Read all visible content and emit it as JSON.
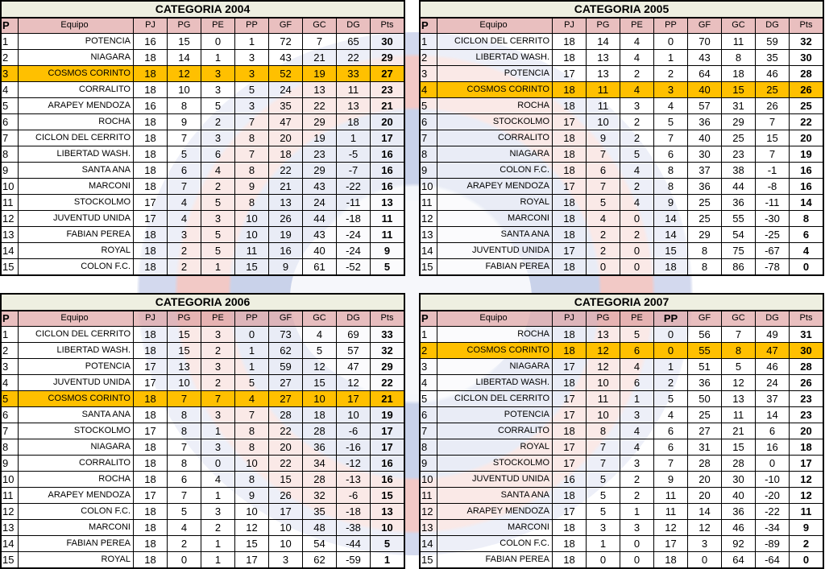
{
  "highlight_team": "COSMOS CORINTO",
  "colors": {
    "highlight": "#FFC000",
    "header": "#E2AAAA",
    "title_bg": "#EEEFE1"
  },
  "columns": [
    "P",
    "Equipo",
    "PJ",
    "PG",
    "PE",
    "PP",
    "GF",
    "GC",
    "DG",
    "Pts"
  ],
  "tables": [
    {
      "title": "CATEGORIA 2004",
      "rows": [
        [
          "1",
          "POTENCIA",
          "16",
          "15",
          "0",
          "1",
          "72",
          "7",
          "65",
          "30"
        ],
        [
          "2",
          "NIAGARA",
          "18",
          "14",
          "1",
          "3",
          "43",
          "21",
          "22",
          "29"
        ],
        [
          "3",
          "COSMOS CORINTO",
          "18",
          "12",
          "3",
          "3",
          "52",
          "19",
          "33",
          "27"
        ],
        [
          "4",
          "CORRALITO",
          "18",
          "10",
          "3",
          "5",
          "24",
          "13",
          "11",
          "23"
        ],
        [
          "5",
          "ARAPEY MENDOZA",
          "16",
          "8",
          "5",
          "3",
          "35",
          "22",
          "13",
          "21"
        ],
        [
          "6",
          "ROCHA",
          "18",
          "9",
          "2",
          "7",
          "47",
          "29",
          "18",
          "20"
        ],
        [
          "7",
          "CICLON DEL CERRITO",
          "18",
          "7",
          "3",
          "8",
          "20",
          "19",
          "1",
          "17"
        ],
        [
          "8",
          "LIBERTAD WASH.",
          "18",
          "5",
          "6",
          "7",
          "18",
          "23",
          "-5",
          "16"
        ],
        [
          "9",
          "SANTA ANA",
          "18",
          "6",
          "4",
          "8",
          "22",
          "29",
          "-7",
          "16"
        ],
        [
          "10",
          "MARCONI",
          "18",
          "7",
          "2",
          "9",
          "21",
          "43",
          "-22",
          "16"
        ],
        [
          "11",
          "STOCKOLMO",
          "17",
          "4",
          "5",
          "8",
          "13",
          "24",
          "-11",
          "13"
        ],
        [
          "12",
          "JUVENTUD UNIDA",
          "17",
          "4",
          "3",
          "10",
          "26",
          "44",
          "-18",
          "11"
        ],
        [
          "13",
          "FABIAN PEREA",
          "18",
          "3",
          "5",
          "10",
          "19",
          "43",
          "-24",
          "11"
        ],
        [
          "14",
          "ROYAL",
          "18",
          "2",
          "5",
          "11",
          "16",
          "40",
          "-24",
          "9"
        ],
        [
          "15",
          "COLON F.C.",
          "18",
          "2",
          "1",
          "15",
          "9",
          "61",
          "-52",
          "5"
        ]
      ]
    },
    {
      "title": "CATEGORIA 2005",
      "rows": [
        [
          "1",
          "CICLON DEL CERRITO",
          "18",
          "14",
          "4",
          "0",
          "70",
          "11",
          "59",
          "32"
        ],
        [
          "2",
          "LIBERTAD WASH.",
          "18",
          "13",
          "4",
          "1",
          "43",
          "8",
          "35",
          "30"
        ],
        [
          "3",
          "POTENCIA",
          "17",
          "13",
          "2",
          "2",
          "64",
          "18",
          "46",
          "28"
        ],
        [
          "4",
          "COSMOS CORINTO",
          "18",
          "11",
          "4",
          "3",
          "40",
          "15",
          "25",
          "26"
        ],
        [
          "5",
          "ROCHA",
          "18",
          "11",
          "3",
          "4",
          "57",
          "31",
          "26",
          "25"
        ],
        [
          "6",
          "STOCKOLMO",
          "17",
          "10",
          "2",
          "5",
          "36",
          "29",
          "7",
          "22"
        ],
        [
          "7",
          "CORRALITO",
          "18",
          "9",
          "2",
          "7",
          "40",
          "25",
          "15",
          "20"
        ],
        [
          "8",
          "NIAGARA",
          "18",
          "7",
          "5",
          "6",
          "30",
          "23",
          "7",
          "19"
        ],
        [
          "9",
          "COLON F.C.",
          "18",
          "6",
          "4",
          "8",
          "37",
          "38",
          "-1",
          "16"
        ],
        [
          "10",
          "ARAPEY MENDOZA",
          "17",
          "7",
          "2",
          "8",
          "36",
          "44",
          "-8",
          "16"
        ],
        [
          "11",
          "ROYAL",
          "18",
          "5",
          "4",
          "9",
          "25",
          "36",
          "-11",
          "14"
        ],
        [
          "12",
          "MARCONI",
          "18",
          "4",
          "0",
          "14",
          "25",
          "55",
          "-30",
          "8"
        ],
        [
          "13",
          "SANTA ANA",
          "18",
          "2",
          "2",
          "14",
          "29",
          "54",
          "-25",
          "6"
        ],
        [
          "14",
          "JUVENTUD UNIDA",
          "17",
          "2",
          "0",
          "15",
          "8",
          "75",
          "-67",
          "4"
        ],
        [
          "15",
          "FABIAN PEREA",
          "18",
          "0",
          "0",
          "18",
          "8",
          "86",
          "-78",
          "0"
        ]
      ]
    },
    {
      "title": "CATEGORIA 2006",
      "rows": [
        [
          "1",
          "CICLON DEL CERRITO",
          "18",
          "15",
          "3",
          "0",
          "73",
          "4",
          "69",
          "33"
        ],
        [
          "2",
          "LIBERTAD WASH.",
          "18",
          "15",
          "2",
          "1",
          "62",
          "5",
          "57",
          "32"
        ],
        [
          "3",
          "POTENCIA",
          "17",
          "13",
          "3",
          "1",
          "59",
          "12",
          "47",
          "29"
        ],
        [
          "4",
          "JUVENTUD UNIDA",
          "17",
          "10",
          "2",
          "5",
          "27",
          "15",
          "12",
          "22"
        ],
        [
          "5",
          "COSMOS CORINTO",
          "18",
          "7",
          "7",
          "4",
          "27",
          "10",
          "17",
          "21"
        ],
        [
          "6",
          "SANTA ANA",
          "18",
          "8",
          "3",
          "7",
          "28",
          "18",
          "10",
          "19"
        ],
        [
          "7",
          "STOCKOLMO",
          "17",
          "8",
          "1",
          "8",
          "22",
          "28",
          "-6",
          "17"
        ],
        [
          "8",
          "NIAGARA",
          "18",
          "7",
          "3",
          "8",
          "20",
          "36",
          "-16",
          "17"
        ],
        [
          "9",
          "CORRALITO",
          "18",
          "8",
          "0",
          "10",
          "22",
          "34",
          "-12",
          "16"
        ],
        [
          "10",
          "ROCHA",
          "18",
          "6",
          "4",
          "8",
          "15",
          "28",
          "-13",
          "16"
        ],
        [
          "11",
          "ARAPEY MENDOZA",
          "17",
          "7",
          "1",
          "9",
          "26",
          "32",
          "-6",
          "15"
        ],
        [
          "12",
          "COLON F.C.",
          "18",
          "5",
          "3",
          "10",
          "17",
          "35",
          "-18",
          "13"
        ],
        [
          "13",
          "MARCONI",
          "18",
          "4",
          "2",
          "12",
          "10",
          "48",
          "-38",
          "10"
        ],
        [
          "14",
          "FABIAN PEREA",
          "18",
          "2",
          "1",
          "15",
          "10",
          "54",
          "-44",
          "5"
        ],
        [
          "15",
          "ROYAL",
          "18",
          "0",
          "1",
          "17",
          "3",
          "62",
          "-59",
          "1"
        ]
      ]
    },
    {
      "title": "CATEGORIA 2007",
      "rows": [
        [
          "1",
          "ROCHA",
          "18",
          "13",
          "5",
          "0",
          "56",
          "7",
          "49",
          "31"
        ],
        [
          "2",
          "COSMOS CORINTO",
          "18",
          "12",
          "6",
          "0",
          "55",
          "8",
          "47",
          "30"
        ],
        [
          "3",
          "NIAGARA",
          "17",
          "12",
          "4",
          "1",
          "51",
          "5",
          "46",
          "28"
        ],
        [
          "4",
          "LIBERTAD WASH.",
          "18",
          "10",
          "6",
          "2",
          "36",
          "12",
          "24",
          "26"
        ],
        [
          "5",
          "CICLON DEL CERRITO",
          "17",
          "11",
          "1",
          "5",
          "50",
          "13",
          "37",
          "23"
        ],
        [
          "6",
          "POTENCIA",
          "17",
          "10",
          "3",
          "4",
          "25",
          "11",
          "14",
          "23"
        ],
        [
          "7",
          "CORRALITO",
          "18",
          "8",
          "4",
          "6",
          "27",
          "21",
          "6",
          "20"
        ],
        [
          "8",
          "ROYAL",
          "17",
          "7",
          "4",
          "6",
          "31",
          "15",
          "16",
          "18"
        ],
        [
          "9",
          "STOCKOLMO",
          "17",
          "7",
          "3",
          "7",
          "28",
          "28",
          "0",
          "17"
        ],
        [
          "10",
          "JUVENTUD UNIDA",
          "16",
          "5",
          "2",
          "9",
          "20",
          "30",
          "-10",
          "12"
        ],
        [
          "11",
          "SANTA ANA",
          "18",
          "5",
          "2",
          "11",
          "20",
          "40",
          "-20",
          "12"
        ],
        [
          "12",
          "ARAPEY MENDOZA",
          "17",
          "5",
          "1",
          "11",
          "14",
          "36",
          "-22",
          "11"
        ],
        [
          "13",
          "MARCONI",
          "18",
          "3",
          "3",
          "12",
          "12",
          "46",
          "-34",
          "9"
        ],
        [
          "14",
          "COLON F.C.",
          "18",
          "1",
          "0",
          "17",
          "3",
          "92",
          "-89",
          "2"
        ],
        [
          "15",
          "FABIAN PEREA",
          "18",
          "0",
          "0",
          "18",
          "0",
          "64",
          "-64",
          "0"
        ]
      ]
    }
  ]
}
